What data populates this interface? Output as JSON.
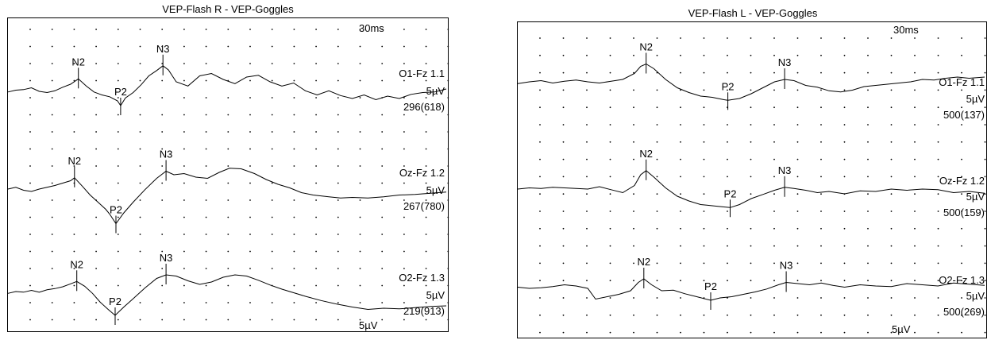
{
  "panels": [
    {
      "title": "VEP-Flash R  - VEP-Goggles",
      "timebase_label": "30ms",
      "scale_label": "5µV",
      "channels": [
        {
          "name": "O1-Fz 1.1",
          "gain": "5µV",
          "count": "296(618)",
          "peaks": [
            {
              "label": "N2",
              "t": 90
            },
            {
              "label": "P2",
              "t": 144
            },
            {
              "label": "N3",
              "t": 198
            }
          ]
        },
        {
          "name": "Oz-Fz 1.2",
          "gain": "5µV",
          "count": "267(780)",
          "peaks": [
            {
              "label": "N2",
              "t": 85
            },
            {
              "label": "P2",
              "t": 138
            },
            {
              "label": "N3",
              "t": 202
            }
          ]
        },
        {
          "name": "O2-Fz 1.3",
          "gain": "5µV",
          "count": "219(913)",
          "peaks": [
            {
              "label": "N2",
              "t": 88
            },
            {
              "label": "P2",
              "t": 137
            },
            {
              "label": "N3",
              "t": 202
            }
          ]
        }
      ]
    },
    {
      "title": "VEP-Flash L  - VEP-Goggles",
      "timebase_label": "30ms",
      "scale_label": "5µV",
      "channels": [
        {
          "name": "O1-Fz 1.1",
          "gain": "5µV",
          "count": "500(137)",
          "peaks": [
            {
              "label": "N2",
              "t": 165
            },
            {
              "label": "P2",
              "t": 270
            },
            {
              "label": "N3",
              "t": 343
            }
          ]
        },
        {
          "name": "Oz-Fz 1.2",
          "gain": "5µV",
          "count": "500(159)",
          "peaks": [
            {
              "label": "N2",
              "t": 165
            },
            {
              "label": "P2",
              "t": 273
            },
            {
              "label": "N3",
              "t": 343
            }
          ]
        },
        {
          "name": "O2-Fz 1.3",
          "gain": "5µV",
          "count": "500(269)",
          "peaks": [
            {
              "label": "N2",
              "t": 162
            },
            {
              "label": "P2",
              "t": 248
            },
            {
              "label": "N3",
              "t": 345
            }
          ]
        }
      ]
    }
  ],
  "chart_data": [
    {
      "type": "line",
      "title": "VEP-Flash R  - VEP-Goggles",
      "xunit": "ms",
      "grid": true,
      "series": [
        {
          "name": "O1-Fz 1.1",
          "t": [
            0,
            10,
            20,
            30,
            40,
            50,
            60,
            70,
            80,
            90,
            100,
            110,
            120,
            130,
            140,
            144,
            150,
            160,
            170,
            180,
            190,
            198,
            205,
            215,
            230,
            245,
            260,
            275,
            290,
            305,
            320,
            335,
            350,
            365,
            380,
            395,
            410,
            425,
            440,
            455,
            470,
            485,
            500,
            515,
            530,
            545,
            560
          ],
          "v": [
            -0.5,
            -0.2,
            -0.1,
            0.2,
            -0.4,
            -0.6,
            -0.3,
            0.3,
            0.8,
            1.7,
            0.5,
            -0.5,
            -1.0,
            -1.3,
            -2.0,
            -2.8,
            -1.5,
            -0.6,
            0.7,
            2.2,
            3.1,
            3.9,
            3.2,
            1.2,
            0.5,
            2.2,
            2.6,
            1.6,
            0.9,
            2.0,
            2.3,
            1.2,
            0.5,
            1.0,
            -0.3,
            -1.0,
            -0.3,
            -1.1,
            -1.6,
            -1.0,
            -1.8,
            -1.2,
            -1.6,
            -0.9,
            -0.6,
            -0.5,
            0.0
          ]
        },
        {
          "name": "Oz-Fz 1.2",
          "t": [
            0,
            10,
            20,
            30,
            40,
            50,
            60,
            70,
            80,
            85,
            95,
            105,
            115,
            125,
            130,
            138,
            148,
            160,
            175,
            190,
            202,
            212,
            225,
            240,
            255,
            270,
            283,
            298,
            315,
            330,
            345,
            360,
            375,
            390,
            410,
            425,
            440,
            460,
            480,
            500,
            520,
            540,
            560
          ],
          "v": [
            0.0,
            0.3,
            -0.2,
            -0.4,
            0.0,
            0.3,
            0.6,
            1.0,
            1.4,
            1.9,
            0.5,
            -1.0,
            -2.2,
            -3.4,
            -4.2,
            -5.8,
            -4.0,
            -2.2,
            -0.1,
            1.8,
            3.0,
            2.4,
            2.6,
            2.0,
            1.8,
            2.8,
            3.5,
            3.4,
            2.6,
            1.6,
            0.8,
            0.2,
            -0.6,
            -1.0,
            -1.3,
            -1.5,
            -1.4,
            -1.5,
            -1.3,
            -1.0,
            -0.9,
            -0.7,
            -0.5
          ]
        },
        {
          "name": "O2-Fz 1.3",
          "t": [
            0,
            10,
            20,
            30,
            40,
            50,
            60,
            70,
            80,
            88,
            98,
            108,
            118,
            128,
            137,
            148,
            160,
            175,
            190,
            202,
            215,
            230,
            245,
            260,
            275,
            290,
            305,
            320,
            335,
            350,
            365,
            380,
            400,
            420,
            440,
            460,
            480,
            500,
            520,
            540,
            560
          ],
          "v": [
            0.1,
            0.4,
            0.3,
            0.6,
            0.3,
            0.7,
            0.9,
            1.2,
            1.7,
            2.1,
            1.3,
            0.1,
            -1.4,
            -2.6,
            -3.6,
            -2.2,
            -0.8,
            1.0,
            2.6,
            3.2,
            3.0,
            2.2,
            1.6,
            2.0,
            2.8,
            3.2,
            3.0,
            2.3,
            1.5,
            0.8,
            0.2,
            -0.4,
            -1.1,
            -1.7,
            -2.2,
            -2.6,
            -2.4,
            -2.5,
            -2.3,
            -2.1,
            -2.0
          ]
        }
      ]
    },
    {
      "type": "line",
      "title": "VEP-Flash L  - VEP-Goggles",
      "xunit": "ms",
      "grid": true,
      "series": [
        {
          "name": "O1-Fz 1.1",
          "t": [
            0,
            15,
            30,
            45,
            60,
            75,
            90,
            105,
            120,
            135,
            150,
            158,
            165,
            175,
            190,
            205,
            220,
            235,
            250,
            265,
            270,
            285,
            300,
            315,
            330,
            343,
            355,
            370,
            385,
            400,
            415,
            430,
            445,
            460,
            475,
            490,
            505,
            520,
            535,
            550,
            565,
            580,
            600
          ],
          "v": [
            -0.3,
            0.0,
            0.2,
            -0.2,
            0.1,
            0.3,
            0.0,
            -0.2,
            0.1,
            0.4,
            1.4,
            2.6,
            3.0,
            2.2,
            0.4,
            -1.0,
            -1.8,
            -2.4,
            -2.6,
            -3.0,
            -3.1,
            -2.8,
            -2.0,
            -1.0,
            0.0,
            0.4,
            0.2,
            -0.6,
            -0.9,
            -1.5,
            -1.7,
            -1.4,
            -0.8,
            -0.6,
            -0.4,
            -0.2,
            0.0,
            0.4,
            0.3,
            0.6,
            0.8,
            0.6,
            0.8
          ]
        },
        {
          "name": "Oz-Fz 1.2",
          "t": [
            0,
            15,
            30,
            45,
            60,
            75,
            90,
            105,
            120,
            135,
            150,
            158,
            165,
            175,
            190,
            205,
            220,
            235,
            250,
            265,
            273,
            285,
            300,
            315,
            330,
            343,
            355,
            370,
            385,
            400,
            420,
            440,
            460,
            480,
            500,
            520,
            540,
            560,
            580,
            600
          ],
          "v": [
            0.0,
            0.2,
            0.1,
            0.3,
            0.2,
            0.1,
            0.0,
            0.4,
            -0.1,
            -0.6,
            0.6,
            2.4,
            3.1,
            2.0,
            0.2,
            -1.2,
            -2.0,
            -2.6,
            -2.8,
            -3.0,
            -3.1,
            -2.6,
            -1.6,
            -0.9,
            -0.2,
            0.3,
            0.1,
            -0.2,
            -0.6,
            -0.4,
            -0.8,
            -0.3,
            -0.4,
            0.0,
            -0.2,
            0.0,
            -0.1,
            -0.6,
            -0.4,
            -0.7
          ]
        },
        {
          "name": "O2-Fz 1.3",
          "t": [
            0,
            15,
            30,
            45,
            60,
            75,
            90,
            100,
            115,
            130,
            145,
            155,
            162,
            172,
            185,
            200,
            215,
            230,
            248,
            260,
            275,
            290,
            305,
            320,
            335,
            345,
            360,
            375,
            390,
            405,
            420,
            440,
            460,
            480,
            500,
            520,
            540,
            560,
            580,
            600
          ],
          "v": [
            0.2,
            0.0,
            0.1,
            0.3,
            0.6,
            0.4,
            0.0,
            -1.8,
            -1.4,
            -1.0,
            -0.4,
            1.0,
            1.6,
            0.6,
            -0.4,
            -0.3,
            -0.9,
            -1.4,
            -2.0,
            -1.6,
            -1.4,
            -1.0,
            -0.6,
            -0.1,
            0.6,
            1.0,
            0.8,
            0.6,
            0.9,
            0.5,
            0.2,
            0.6,
            0.4,
            0.3,
            0.8,
            0.6,
            0.4,
            0.9,
            0.7,
            0.5
          ]
        }
      ]
    }
  ]
}
